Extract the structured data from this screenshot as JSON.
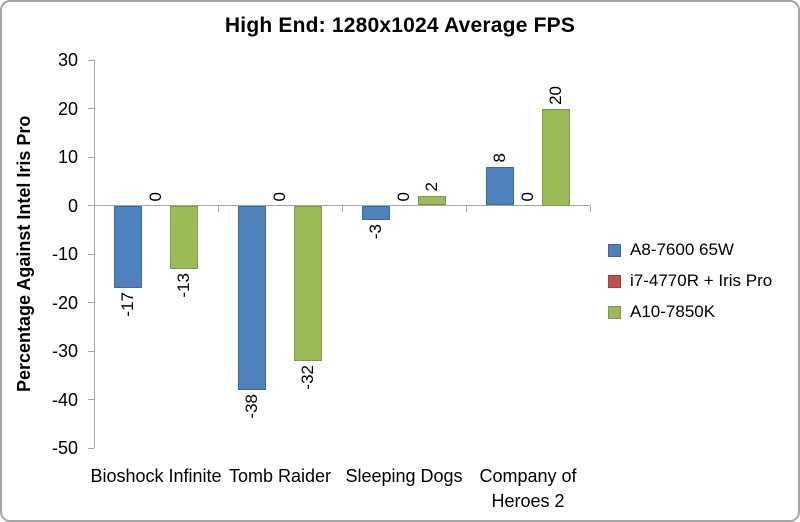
{
  "chart_data": {
    "type": "bar",
    "title": "High End: 1280x1024 Average FPS",
    "xlabel": "",
    "ylabel": "Percentage Against Intel Iris Pro",
    "categories": [
      "Bioshock Infinite",
      "Tomb Raider",
      "Sleeping Dogs",
      "Company of Heroes 2"
    ],
    "series": [
      {
        "name": "A8-7600 65W",
        "color": "#4F81BD",
        "values": [
          -17,
          -38,
          -3,
          8
        ]
      },
      {
        "name": "i7-4770R + Iris Pro",
        "color": "#C0504D",
        "values": [
          0,
          0,
          0,
          0
        ]
      },
      {
        "name": "A10-7850K",
        "color": "#9BBB59",
        "values": [
          -13,
          -32,
          2,
          20
        ]
      }
    ],
    "ylim": [
      -50,
      30
    ],
    "ytick_step": 10,
    "yticks": [
      30,
      20,
      10,
      0,
      -10,
      -20,
      -30,
      -40,
      -50
    ],
    "grid": false,
    "legend_position": "right",
    "data_labels": true,
    "data_label_rotation": 90
  },
  "colors": {
    "axis": "#A6A6A6",
    "text": "#000000",
    "background": "#FFFFFF",
    "frame_border": "#A6A6A6"
  }
}
